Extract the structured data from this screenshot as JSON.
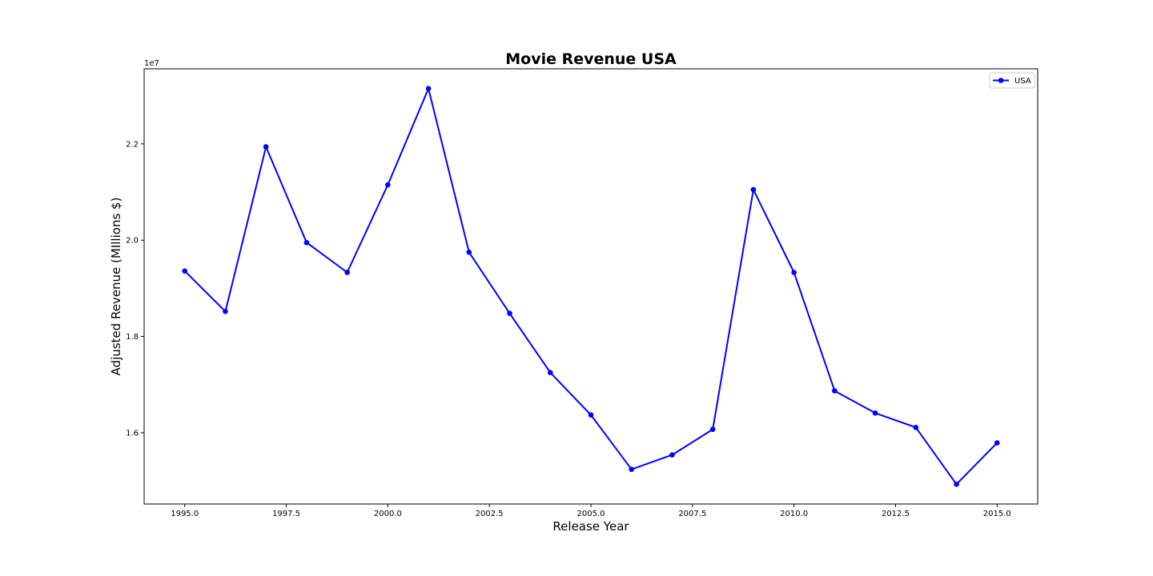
{
  "chart_data": {
    "type": "line",
    "title": "Movie Revenue USA",
    "xlabel": "Release Year",
    "ylabel": "Adjusted Revenue (MIllions $)",
    "y_offset_text": "1e7",
    "xlim": [
      1994.0,
      2016.0
    ],
    "ylim": [
      14520000.0,
      23560000.0
    ],
    "x_ticks": [
      1995.0,
      1997.5,
      2000.0,
      2002.5,
      2005.0,
      2007.5,
      2010.0,
      2012.5,
      2015.0
    ],
    "x_tick_labels": [
      "1995.0",
      "1997.5",
      "2000.0",
      "2002.5",
      "2005.0",
      "2007.5",
      "2010.0",
      "2012.5",
      "2015.0"
    ],
    "y_ticks": [
      16000000.0,
      18000000.0,
      20000000.0,
      22000000.0
    ],
    "y_tick_labels": [
      "1.6",
      "1.8",
      "2.0",
      "2.2"
    ],
    "grid": false,
    "legend_position": "top-right",
    "colors": {
      "series": "#0000ff"
    },
    "series": [
      {
        "name": "USA",
        "x": [
          1995,
          1996,
          1997,
          1998,
          1999,
          2000,
          2001,
          2002,
          2003,
          2004,
          2005,
          2006,
          2007,
          2008,
          2009,
          2010,
          2011,
          2012,
          2013,
          2014,
          2015
        ],
        "y": [
          19360000,
          18520000,
          21940000,
          19950000,
          19330000,
          21150000,
          23150000,
          19750000,
          18480000,
          17250000,
          16370000,
          15240000,
          15540000,
          16070000,
          21050000,
          19330000,
          16870000,
          16410000,
          16110000,
          14930000,
          15790000
        ]
      }
    ]
  }
}
